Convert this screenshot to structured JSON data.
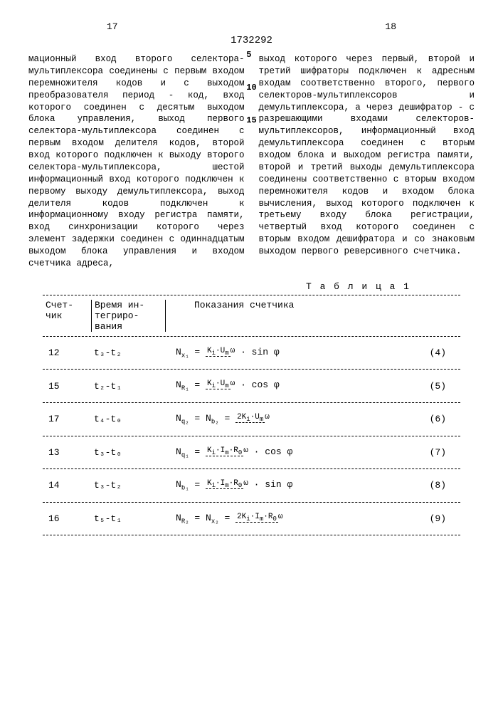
{
  "page_left": "17",
  "page_right": "18",
  "doc_id": "1732292",
  "col_left": "мационный вход второго селектора-мультиплексора соединены с первым входом перемножителя кодов и с выходом преобразователя период - код, вход которого соединен с десятым выходом блока управления, выход первого селектора-мультиплексора соединен с первым входом делителя кодов, второй вход которого подключен к выходу второго селектора-мультиплексора, шестой информационный вход которого подключен к первому выходу демультиплексора, выход делителя кодов подключен к информационному входу регистра памяти, вход синхронизации которого через элемент задержки соединен с одиннадцатым выходом блока управления и входом счетчика адреса,",
  "col_right": "выход которого через первый, второй и третий шифраторы подключен к адресным входам соответственно второго, первого селекторов-мультиплексоров и демультиплексора, а через дешифратор - с разрешающими входами селекторов-мультиплексоров, информационный вход демультиплексора соединен с вторым входом блока и выходом регистра памяти, второй и третий выходы демультиплексора соединены соответственно с вторым входом перемножителя кодов и входом блока вычисления, выход которого подключен к третьему входу блока регистрации, четвертый вход которого соединен с вторым входом дешифратора и со знаковым выходом первого реверсивного счетчика.",
  "markers": [
    "5",
    "10",
    "15"
  ],
  "table_title": "Т а б л и ц а  1",
  "th1": "Счет-\nчик",
  "th2": "Время ин-\nтегриро-\nвания",
  "th3": "Показания счетчика",
  "rows": [
    {
      "c": "12",
      "t": "t₃-t₂",
      "lhs": "N<sub>x₁</sub> =",
      "num": "K<sub>i</sub>·U<sub>m</sub>",
      "den": "ω",
      "suffix": "· sin φ",
      "eq": "(4)"
    },
    {
      "c": "15",
      "t": "t₂-t₁",
      "lhs": "N<sub>R₁</sub> =",
      "num": "K<sub>i</sub>·U<sub>m</sub>",
      "den": "ω",
      "suffix": "· cos φ",
      "eq": "(5)"
    },
    {
      "c": "17",
      "t": "t₄-t₀",
      "lhs": "N<sub>q₂</sub> = N<sub>b₂</sub> =",
      "num": "2K<sub>i</sub>·U<sub>m</sub>",
      "den": "ω",
      "suffix": "",
      "eq": "(6)"
    },
    {
      "c": "13",
      "t": "t₃-t₀",
      "lhs": "N<sub>q₁</sub> =",
      "num": "K<sub>i</sub>·I<sub>m</sub>·R<sub>0</sub>",
      "den": "ω",
      "suffix": "· cos φ",
      "eq": "(7)"
    },
    {
      "c": "14",
      "t": "t₃-t₂",
      "lhs": "N<sub>b₁</sub> =",
      "num": "K<sub>i</sub>·I<sub>m</sub>·R<sub>0</sub>",
      "den": "ω",
      "suffix": "· sin φ",
      "eq": "(8)"
    },
    {
      "c": "16",
      "t": "t₅-t₁",
      "lhs": "N<sub>R₂</sub> = N<sub>x₂</sub> =",
      "num": "2K<sub>i</sub>·I<sub>m</sub>·R<sub>0</sub>",
      "den": "ω",
      "suffix": "",
      "eq": "(9)"
    }
  ]
}
